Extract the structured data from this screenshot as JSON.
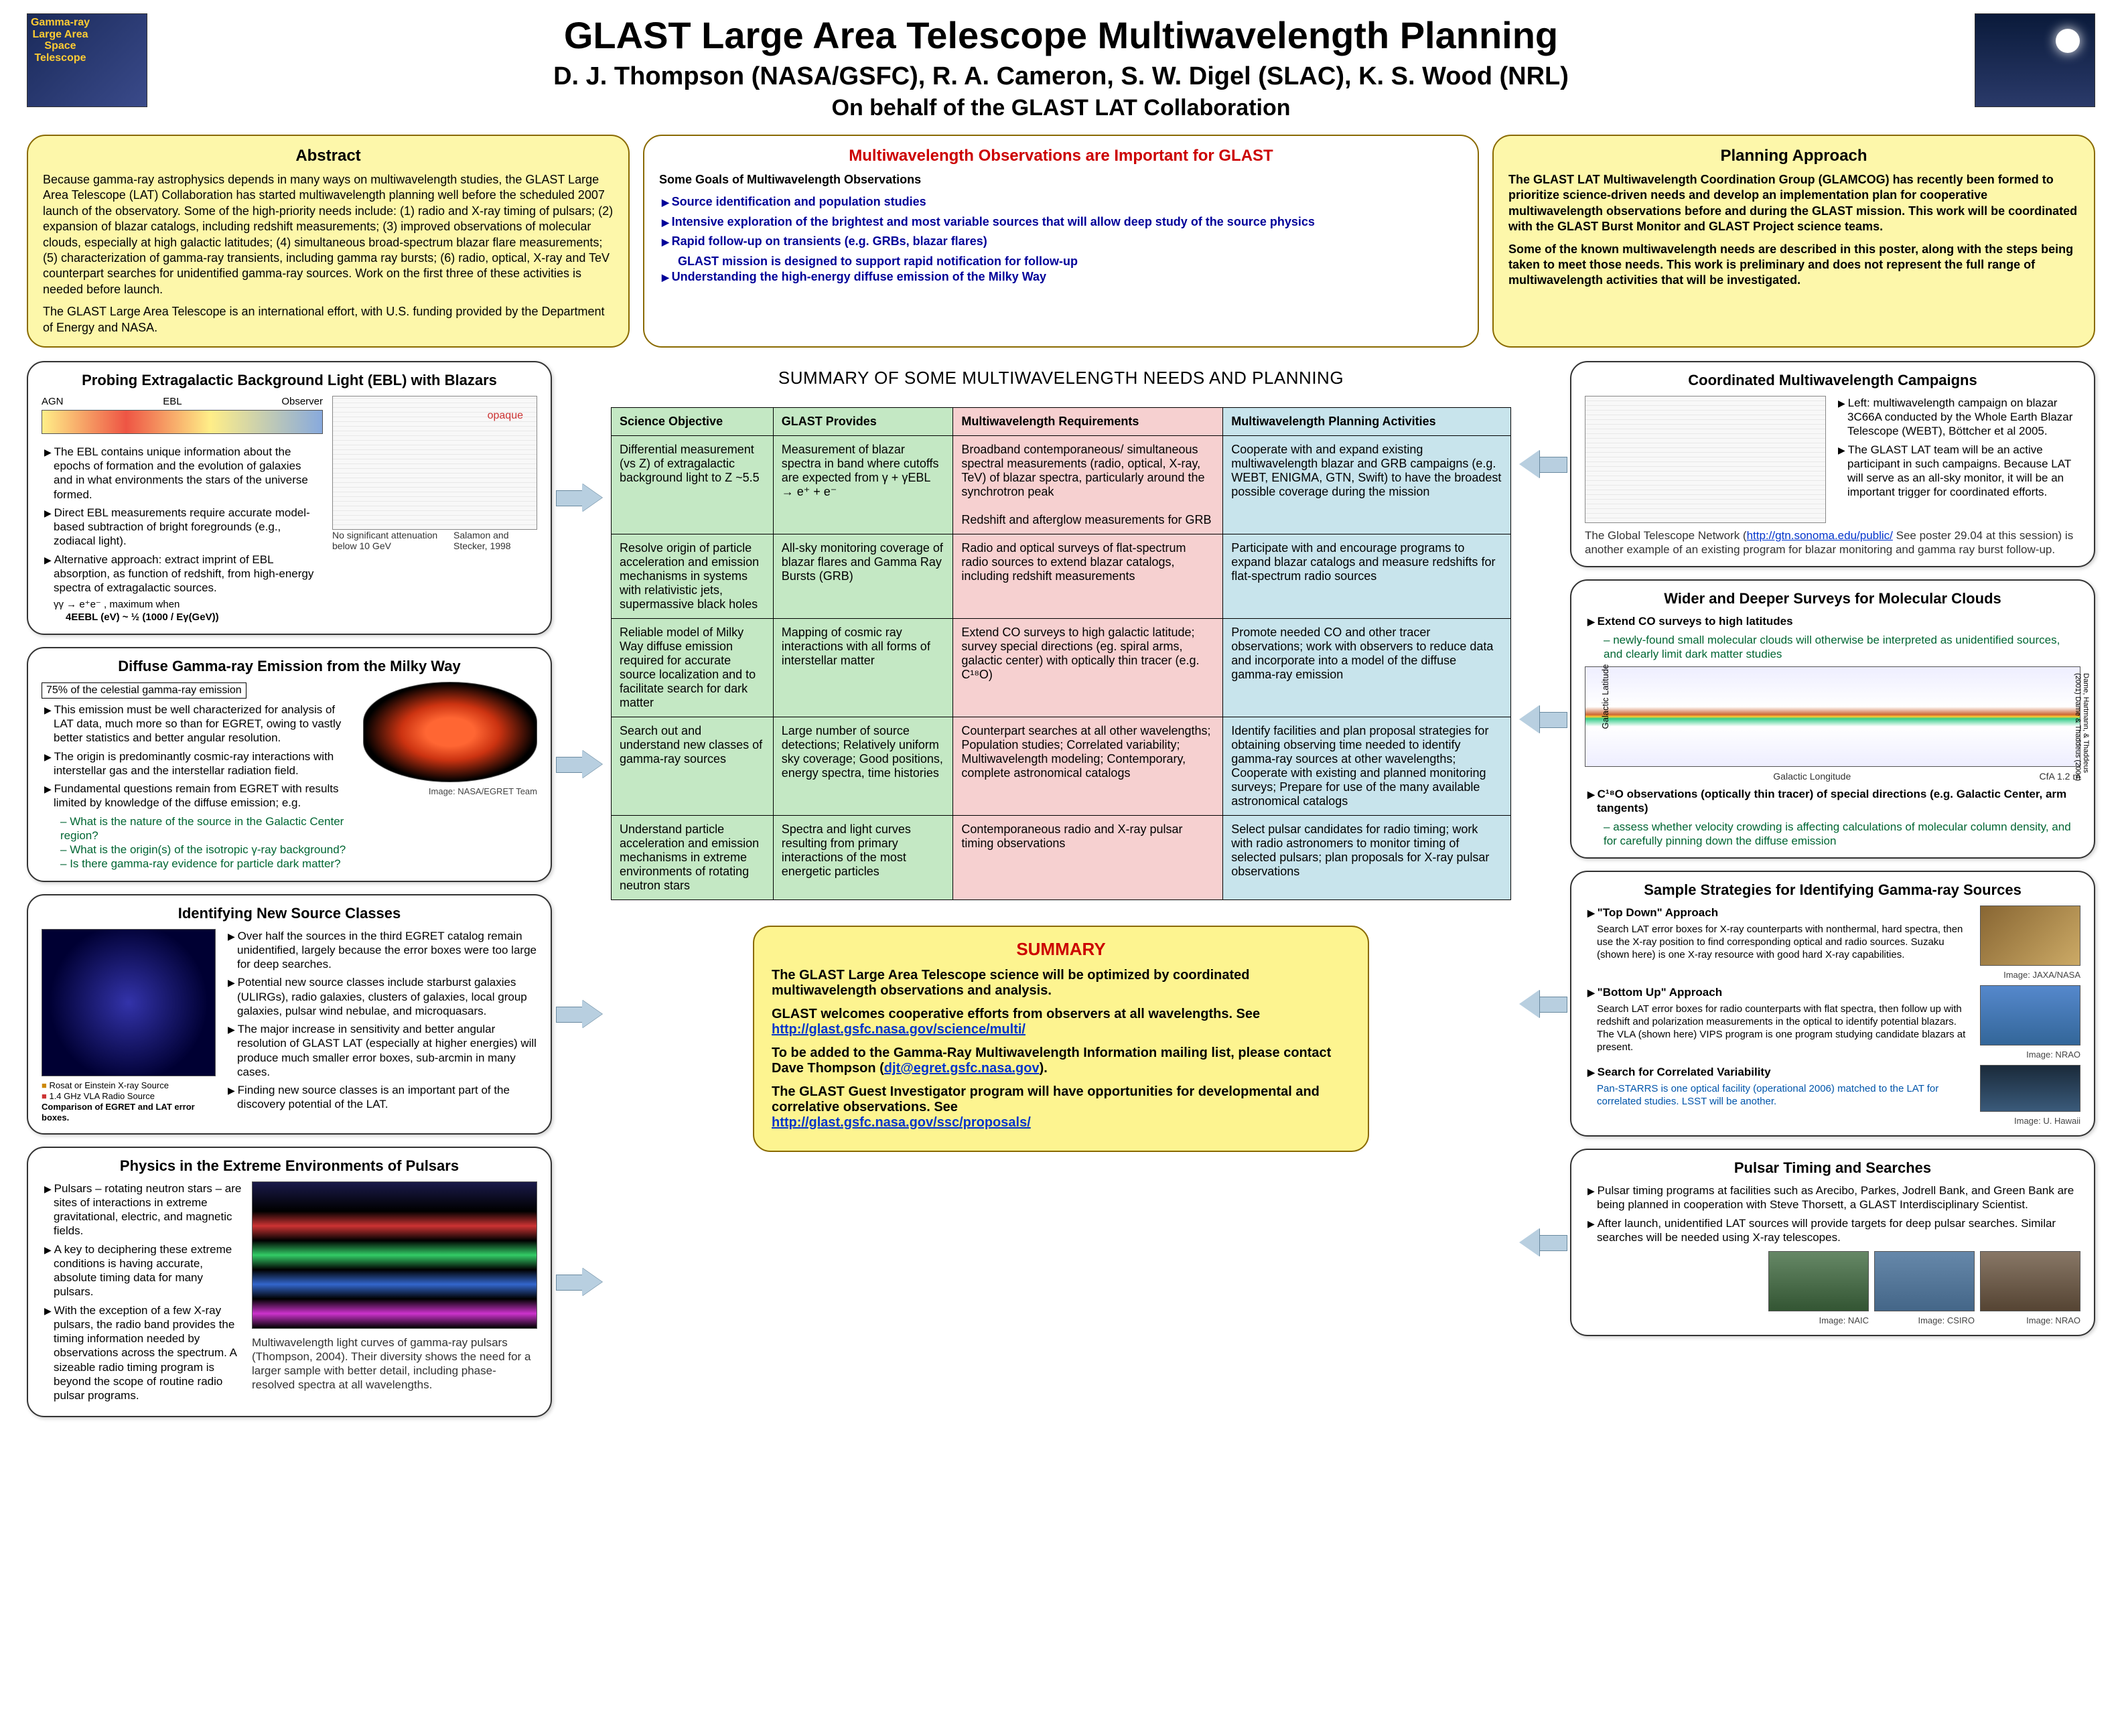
{
  "header": {
    "title": "GLAST Large Area Telescope Multiwavelength Planning",
    "authors": "D. J. Thompson (NASA/GSFC), R. A. Cameron, S. W. Digel (SLAC), K. S. Wood (NRL)",
    "behalf": "On behalf of the GLAST LAT Collaboration"
  },
  "abstract": {
    "title": "Abstract",
    "body": "Because gamma-ray astrophysics depends in many ways on multiwavelength studies, the GLAST Large Area Telescope (LAT) Collaboration has started multiwavelength planning well before the scheduled 2007 launch of the observatory. Some of the high-priority needs include: (1) radio and X-ray timing of pulsars; (2) expansion of blazar catalogs, including redshift measurements; (3) improved observations of molecular clouds, especially at high galactic latitudes; (4) simultaneous broad-spectrum blazar flare measurements; (5) characterization of gamma-ray transients, including gamma ray bursts; (6) radio, optical, X-ray and TeV counterpart searches for unidentified gamma-ray sources. Work on the first three of these activities is needed before launch.",
    "body2": "The GLAST Large Area Telescope is an international effort, with U.S. funding provided by the Department of Energy and NASA."
  },
  "goals": {
    "title": "Multiwavelength Observations are Important for GLAST",
    "sub": "Some Goals of Multiwavelength Observations",
    "b1": "Source identification and population studies",
    "b2": "Intensive exploration of the brightest and most variable sources that will allow deep study of the source physics",
    "b3": "Rapid follow-up on transients (e.g. GRBs, blazar flares)",
    "b3a": "GLAST mission is designed to support rapid notification for follow-up",
    "b4": "Understanding the high-energy diffuse emission of the Milky Way"
  },
  "approach": {
    "title": "Planning Approach",
    "p1": "The GLAST LAT Multiwavelength Coordination Group (GLAMCOG) has recently been formed to prioritize science-driven needs and develop an implementation plan for cooperative multiwavelength observations before and during the GLAST mission. This work will be coordinated with the GLAST Burst Monitor and GLAST Project science teams.",
    "p2": "Some of the known multiwavelength needs are described in this poster, along with the steps being taken to meet those needs.  This work is preliminary and does not represent the full range of multiwavelength activities that will be investigated."
  },
  "tableTitle": "SUMMARY OF SOME MULTIWAVELENGTH NEEDS AND PLANNING",
  "th": {
    "c1": "Science Objective",
    "c2": "GLAST Provides",
    "c3": "Multiwavelength Requirements",
    "c4": "Multiwavelength Planning Activities"
  },
  "rows": [
    {
      "c1": "Differential measurement (vs Z) of extragalactic background light to Z ~5.5",
      "c2": "Measurement of blazar spectra in band where cutoffs are expected from γ + γEBL → e⁺ + e⁻",
      "c3": "Broadband contemporaneous/ simultaneous spectral measurements (radio, optical, X-ray, TeV) of blazar spectra, particularly around the synchrotron peak\n\nRedshift and afterglow measurements for GRB",
      "c4": "Cooperate with and expand existing multiwavelength blazar and GRB campaigns (e.g. WEBT, ENIGMA, GTN, Swift) to have the broadest possible coverage during the mission"
    },
    {
      "c1": "Resolve origin of particle acceleration and emission mechanisms in systems with relativistic jets, supermassive black holes",
      "c2": "All-sky monitoring coverage of blazar flares and Gamma Ray Bursts (GRB)",
      "c3": "Radio and optical surveys of flat-spectrum radio sources to extend blazar catalogs, including redshift measurements",
      "c4": "Participate with and encourage programs to expand blazar catalogs and measure redshifts for flat-spectrum radio sources"
    },
    {
      "c1": "Reliable model of Milky Way diffuse emission required for accurate source localization and to facilitate search for dark matter",
      "c2": "Mapping of cosmic ray interactions with all forms of interstellar matter",
      "c3": "Extend CO surveys to high galactic latitude; survey special directions (eg. spiral arms, galactic center) with optically thin tracer (e.g. C¹⁸O)",
      "c4": "Promote needed CO and other tracer observations; work with observers to reduce data and incorporate into a model of the diffuse gamma-ray emission"
    },
    {
      "c1": "Search out and understand new classes of gamma-ray sources",
      "c2": "Large number of source detections; Relatively uniform sky coverage; Good positions, energy spectra, time histories",
      "c3": "Counterpart searches at all other wavelengths; Population studies; Correlated variability; Multiwavelength modeling; Contemporary, complete astronomical catalogs",
      "c4": "Identify facilities and plan proposal strategies for obtaining observing time needed to identify gamma-ray sources at other wavelengths; Cooperate with existing and planned monitoring surveys; Prepare for use of the many available astronomical catalogs"
    },
    {
      "c1": "Understand particle acceleration and emission mechanisms in extreme environments of rotating neutron stars",
      "c2": "Spectra and light curves resulting from primary interactions of the most energetic particles",
      "c3": "Contemporaneous radio and X-ray pulsar timing observations",
      "c4": "Select pulsar candidates for radio timing; work with radio astronomers to monitor timing of selected pulsars; plan proposals for X-ray pulsar observations"
    }
  ],
  "ebl": {
    "title": "Probing Extragalactic Background Light (EBL) with Blazars",
    "labels": {
      "agn": "AGN",
      "ebl": "EBL",
      "obs": "Observer",
      "opaque": "opaque"
    },
    "b1": "The EBL contains unique information about the epochs of formation and the evolution of galaxies and in what environments the stars of the universe formed.",
    "b2": "Direct EBL measurements require accurate model-based subtraction of bright foregrounds (e.g., zodiacal light).",
    "b3": "Alternative approach:  extract imprint of EBL absorption, as function of redshift, from high-energy spectra of extragalactic sources.",
    "eq1": "γγ → e⁺e⁻ , maximum when",
    "eq2": "4EEBL (eV) ~ ½ (1000 / Eγ(GeV))",
    "note1": "No significant attenuation below 10 GeV",
    "note2": "Salamon and Stecker, 1998"
  },
  "diffuse": {
    "title": "Diffuse Gamma-ray Emission from the Milky Way",
    "pct": "75% of the celestial gamma-ray emission",
    "b1": "This emission must be well characterized for analysis of LAT data, much more so than for EGRET, owing to vastly better statistics and better angular resolution.",
    "b2": "The origin is predominantly cosmic-ray interactions with interstellar gas and the interstellar radiation field.",
    "b3": "Fundamental questions remain from EGRET with results limited by knowledge of the diffuse emission; e.g.",
    "q1": "What is the nature of the source in the Galactic Center region?",
    "q2": "What is the origin(s) of the isotropic γ-ray background?",
    "q3": "Is there gamma-ray evidence for particle dark matter?",
    "cap": "Image: NASA/EGRET Team"
  },
  "newsrc": {
    "title": "Identifying New Source Classes",
    "b1": "Over half the sources in the third EGRET catalog remain unidentified, largely because the error boxes were too large for deep searches.",
    "b2": "Potential new source classes include starburst galaxies (ULIRGs), radio galaxies, clusters of galaxies, local group galaxies, pulsar wind nebulae, and microquasars.",
    "b3": "The major increase in sensitivity and better angular resolution of GLAST LAT (especially at higher energies) will produce much smaller error boxes, sub-arcmin in many cases.",
    "b4": "Finding new source classes is an important part of the discovery potential of the LAT.",
    "leg1": "Rosat or Einstein X-ray Source",
    "leg2": "1.4 GHz VLA Radio Source",
    "leg3": "Comparison of EGRET and LAT error boxes."
  },
  "pulsar": {
    "title": "Physics in the Extreme Environments of Pulsars",
    "b1": "Pulsars – rotating neutron stars – are sites of interactions in extreme gravitational, electric, and magnetic fields.",
    "b2": "A key to deciphering these extreme conditions is having accurate, absolute timing data for many pulsars.",
    "b3": "With the exception of a few X-ray pulsars, the radio band provides the timing information needed by observations across the spectrum. A sizeable radio timing program is beyond the scope of routine radio pulsar programs.",
    "cap": "Multiwavelength light curves of gamma-ray pulsars (Thompson, 2004). Their diversity shows the need for a larger sample with better detail, including phase-resolved spectra at all wavelengths."
  },
  "campaigns": {
    "title": "Coordinated Multiwavelength Campaigns",
    "b1": "Left: multiwavelength campaign on blazar 3C66A conducted by the Whole Earth Blazar Telescope (WEBT), Böttcher et al 2005.",
    "b2": "The GLAST LAT team will be an active participant in such campaigns. Because LAT will serve as an all-sky monitor, it will be an important trigger for coordinated efforts.",
    "note": "The Global Telescope Network (http://gtn.sonoma.edu/public/. See poster 29.04 at this session) is another example of an existing program for blazar monitoring and gamma ray burst follow-up.",
    "link": "http://gtn.sonoma.edu/public/"
  },
  "surveys": {
    "title": "Wider and Deeper Surveys for Molecular Clouds",
    "b1": "Extend CO surveys to high latitudes",
    "s1": "newly-found small molecular clouds will otherwise be interpreted as unidentified sources, and clearly limit dark matter studies",
    "b2": "C¹⁸O observations (optically thin tracer) of special directions (e.g. Galactic Center, arm tangents)",
    "s2": "assess whether velocity crowding is affecting calculations of molecular column density, and for carefully pinning down the diffuse emission",
    "cap": "CfA 1.2 m",
    "cred": "Dame, Hartmann, & Thaddeus (2001)  Dame & Thaddeus (2004)",
    "ylab": "Galactic Latitude",
    "xlab": "Galactic Longitude"
  },
  "strategies": {
    "title": "Sample Strategies for Identifying Gamma-ray Sources",
    "h1": "\"Top Down\" Approach",
    "p1": "Search LAT error boxes for X-ray counterparts with nonthermal, hard spectra, then use the X-ray position to find corresponding optical and radio sources.  Suzaku (shown here) is one X-ray resource with good hard X-ray capabilities.",
    "c1": "Image: JAXA/NASA",
    "h2": "\"Bottom Up\" Approach",
    "p2": "Search LAT error boxes for radio counterparts with flat spectra, then follow up with redshift and polarization measurements in the optical to identify potential blazars.  The VLA (shown here) VIPS program is one program studying candidate blazars at present.",
    "c2": "Image: NRAO",
    "h3": "Search for Correlated Variability",
    "p3": "Pan-STARRS is one optical facility (operational 2006) matched to the LAT for correlated studies.  LSST will be another.",
    "c3": "Image: U. Hawaii"
  },
  "timing": {
    "title": "Pulsar Timing and Searches",
    "b1": "Pulsar timing programs at facilities such as Arecibo, Parkes, Jodrell Bank, and Green Bank are being planned in cooperation with Steve Thorsett, a GLAST Interdisciplinary Scientist.",
    "b2": "After launch, unidentified LAT sources will provide targets for deep pulsar searches.  Similar searches will be needed using X-ray telescopes.",
    "c1": "Image: NAIC",
    "c2": "Image: CSIRO",
    "c3": "Image: NRAO"
  },
  "summary": {
    "title": "SUMMARY",
    "p1": "The GLAST Large Area Telescope science will be optimized by coordinated multiwavelength observations and analysis.",
    "p2a": "GLAST welcomes cooperative efforts from observers at all wavelengths. See ",
    "p2link": "http://glast.gsfc.nasa.gov/science/multi/",
    "p3a": "To be added to the Gamma-Ray Multiwavelength Information mailing list, please contact Dave Thompson (",
    "p3link": "djt@egret.gsfc.nasa.gov",
    "p3b": ").",
    "p4a": "The GLAST Guest Investigator program will have opportunities for developmental and correlative observations. See ",
    "p4link": "http://glast.gsfc.nasa.gov/ssc/proposals/"
  }
}
